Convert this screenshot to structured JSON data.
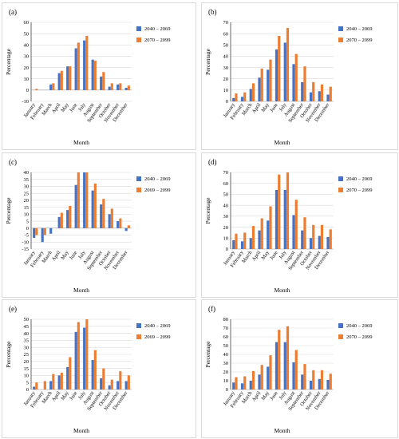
{
  "colors": {
    "series1": "#4472c4",
    "series2": "#ed7d31"
  },
  "chart_data": [
    {
      "type": "bar",
      "panel": "(a)",
      "categories": [
        "January",
        "February",
        "March",
        "April",
        "May",
        "June",
        "July",
        "August",
        "September",
        "October",
        "November",
        "December"
      ],
      "series": [
        {
          "name": "2040 – 2069",
          "values": [
            0,
            0,
            5,
            15,
            21,
            37,
            44,
            27,
            12,
            3,
            5,
            2
          ]
        },
        {
          "name": "2070 – 2099",
          "values": [
            1,
            0,
            6,
            17,
            21,
            42,
            48,
            26,
            16,
            6,
            6,
            4
          ]
        }
      ],
      "ylim": [
        -10,
        60
      ],
      "yticks": [
        -10,
        0,
        10,
        20,
        30,
        40,
        50,
        60
      ],
      "xlabel": "Month",
      "ylabel": "Percentage",
      "legend": "right"
    },
    {
      "type": "bar",
      "panel": "(b)",
      "categories": [
        "January",
        "February",
        "March",
        "April",
        "May",
        "June",
        "July",
        "August",
        "September",
        "October",
        "November",
        "December"
      ],
      "series": [
        {
          "name": "2040 – 2069",
          "values": [
            3,
            4,
            11,
            21,
            28,
            46,
            52,
            33,
            17,
            8,
            9,
            6
          ]
        },
        {
          "name": "2070 – 2099",
          "values": [
            7,
            8,
            16,
            29,
            37,
            58,
            65,
            42,
            31,
            17,
            15,
            13
          ]
        }
      ],
      "ylim": [
        0,
        70
      ],
      "yticks": [
        0,
        10,
        20,
        30,
        40,
        50,
        60,
        70
      ],
      "xlabel": "Month",
      "ylabel": "Percentage",
      "legend": "right"
    },
    {
      "type": "bar",
      "panel": "(c)",
      "categories": [
        "January",
        "February",
        "March",
        "April",
        "May",
        "June",
        "July",
        "August",
        "September",
        "October",
        "November",
        "December"
      ],
      "series": [
        {
          "name": "2040 – 2069",
          "values": [
            -7,
            -10,
            -4,
            8,
            13,
            31,
            40,
            27,
            17,
            10,
            5,
            -2
          ]
        },
        {
          "name": "2069 – 2099",
          "values": [
            -5,
            -5,
            0,
            11,
            16,
            40,
            40,
            32,
            21,
            14,
            7,
            2
          ]
        }
      ],
      "ylim": [
        -15,
        40
      ],
      "yticks": [
        -15,
        -10,
        -5,
        0,
        5,
        10,
        15,
        20,
        25,
        30,
        35,
        40
      ],
      "xlabel": "Month",
      "ylabel": "Percentage",
      "legend": "right"
    },
    {
      "type": "bar",
      "panel": "(d)",
      "categories": [
        "January",
        "February",
        "March",
        "April",
        "May",
        "June",
        "July",
        "August",
        "September",
        "October",
        "November",
        "December"
      ],
      "series": [
        {
          "name": "2040 – 2069",
          "values": [
            8,
            7,
            10,
            17,
            26,
            54,
            54,
            31,
            17,
            10,
            12,
            11
          ]
        },
        {
          "name": "2070 – 2099",
          "values": [
            14,
            15,
            21,
            28,
            39,
            68,
            70,
            45,
            29,
            22,
            22,
            18
          ]
        }
      ],
      "ylim": [
        0,
        70
      ],
      "yticks": [
        0,
        10,
        20,
        30,
        40,
        50,
        60,
        70
      ],
      "xlabel": "Month",
      "ylabel": "Percentage",
      "legend": "right"
    },
    {
      "type": "bar",
      "panel": "(e)",
      "categories": [
        "January",
        "February",
        "March",
        "April",
        "May",
        "June",
        "July",
        "August",
        "September",
        "October",
        "November",
        "December"
      ],
      "series": [
        {
          "name": "2040 – 2069",
          "values": [
            2,
            0,
            6,
            10,
            16,
            41,
            44,
            21,
            8,
            3,
            6,
            6
          ]
        },
        {
          "name": "2069 – 2099",
          "values": [
            5,
            6,
            11,
            12,
            23,
            48,
            50,
            28,
            15,
            7,
            13,
            10
          ]
        }
      ],
      "ylim": [
        0,
        50
      ],
      "yticks": [
        0,
        5,
        10,
        15,
        20,
        25,
        30,
        35,
        40,
        45,
        50
      ],
      "xlabel": "Month",
      "ylabel": "Percentage",
      "legend": "right"
    },
    {
      "type": "bar",
      "panel": "(f)",
      "categories": [
        "January",
        "February",
        "March",
        "April",
        "May",
        "June",
        "July",
        "August",
        "September",
        "October",
        "November",
        "December"
      ],
      "series": [
        {
          "name": "2040 – 2069",
          "values": [
            8,
            7,
            10,
            17,
            26,
            54,
            54,
            31,
            17,
            10,
            12,
            11
          ]
        },
        {
          "name": "2070 – 2099",
          "values": [
            14,
            15,
            21,
            28,
            39,
            68,
            72,
            45,
            29,
            22,
            22,
            18
          ]
        }
      ],
      "ylim": [
        0,
        80
      ],
      "yticks": [
        0,
        10,
        20,
        30,
        40,
        50,
        60,
        70,
        80
      ],
      "xlabel": "Month",
      "ylabel": "Percentage",
      "legend": "right"
    }
  ]
}
